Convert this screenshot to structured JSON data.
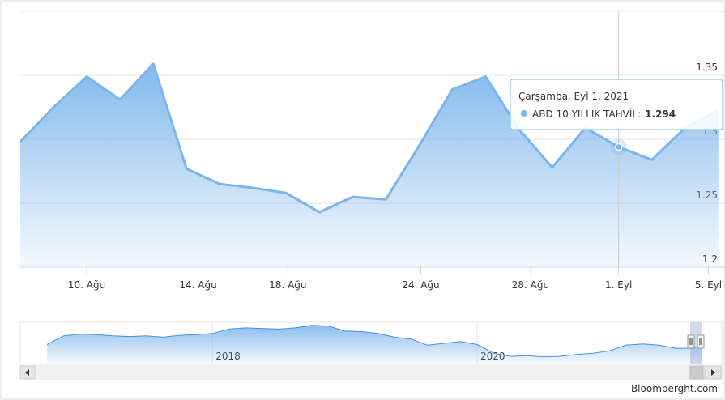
{
  "chart_data": {
    "type": "area",
    "x": [
      0,
      1,
      2,
      3,
      4,
      5,
      6,
      7,
      8,
      9,
      10,
      11,
      12,
      13,
      14,
      15,
      16,
      17,
      18,
      19,
      20,
      21
    ],
    "values": [
      1.298,
      1.325,
      1.349,
      1.331,
      1.359,
      1.277,
      1.265,
      1.262,
      1.258,
      1.243,
      1.255,
      1.253,
      1.295,
      1.339,
      1.349,
      1.308,
      1.278,
      1.309,
      1.294,
      1.284,
      1.309,
      1.323
    ],
    "color": "#7cb5ec",
    "xlim": [
      0,
      21.2
    ],
    "xticks": [
      {
        "value": 2,
        "label": "10. Ağu"
      },
      {
        "value": 5.35,
        "label": "14. Ağu"
      },
      {
        "value": 8.05,
        "label": "18. Ağu"
      },
      {
        "value": 12.05,
        "label": "24. Ağu"
      },
      {
        "value": 15.35,
        "label": "28. Ağu"
      },
      {
        "value": 18,
        "label": "1. Eyl"
      },
      {
        "value": 20.7,
        "label": "5. Eyl"
      }
    ],
    "ylim": [
      1.2,
      1.4
    ],
    "yticks": [
      1.2,
      1.25,
      1.3,
      1.35
    ],
    "grid": true,
    "tooltip": {
      "header": "Çarşamba, Eyl 1, 2021",
      "label": "ABD 10 YILLIK TAHVİL:",
      "index": 18
    },
    "navigator": {
      "x": [
        2016.75,
        2016.875,
        2017,
        2017.125,
        2017.25,
        2017.375,
        2017.5,
        2017.625,
        2017.75,
        2017.875,
        2018,
        2018.125,
        2018.25,
        2018.375,
        2018.5,
        2018.625,
        2018.75,
        2018.875,
        2019,
        2019.125,
        2019.25,
        2019.375,
        2019.5,
        2019.625,
        2019.75,
        2019.875,
        2020,
        2020.125,
        2020.25,
        2020.375,
        2020.5,
        2020.625,
        2020.75,
        2020.875,
        2021,
        2021.125,
        2021.25,
        2021.375,
        2021.5,
        2021.625,
        2021.7
      ],
      "values": [
        1.6,
        2.3,
        2.45,
        2.4,
        2.3,
        2.25,
        2.3,
        2.2,
        2.35,
        2.4,
        2.5,
        2.85,
        2.95,
        2.9,
        2.85,
        2.95,
        3.15,
        3.1,
        2.7,
        2.65,
        2.5,
        2.2,
        2.05,
        1.55,
        1.7,
        1.85,
        1.6,
        0.9,
        0.65,
        0.7,
        0.6,
        0.65,
        0.8,
        0.9,
        1.1,
        1.55,
        1.65,
        1.55,
        1.3,
        1.3,
        1.5
      ],
      "xlim": [
        2016.67,
        2021.72
      ],
      "ylim": [
        0,
        3.4
      ],
      "xticks": [
        {
          "value": 2018,
          "label": "2018"
        },
        {
          "value": 2020,
          "label": "2020"
        }
      ]
    },
    "credit": "Bloomberght.com"
  }
}
